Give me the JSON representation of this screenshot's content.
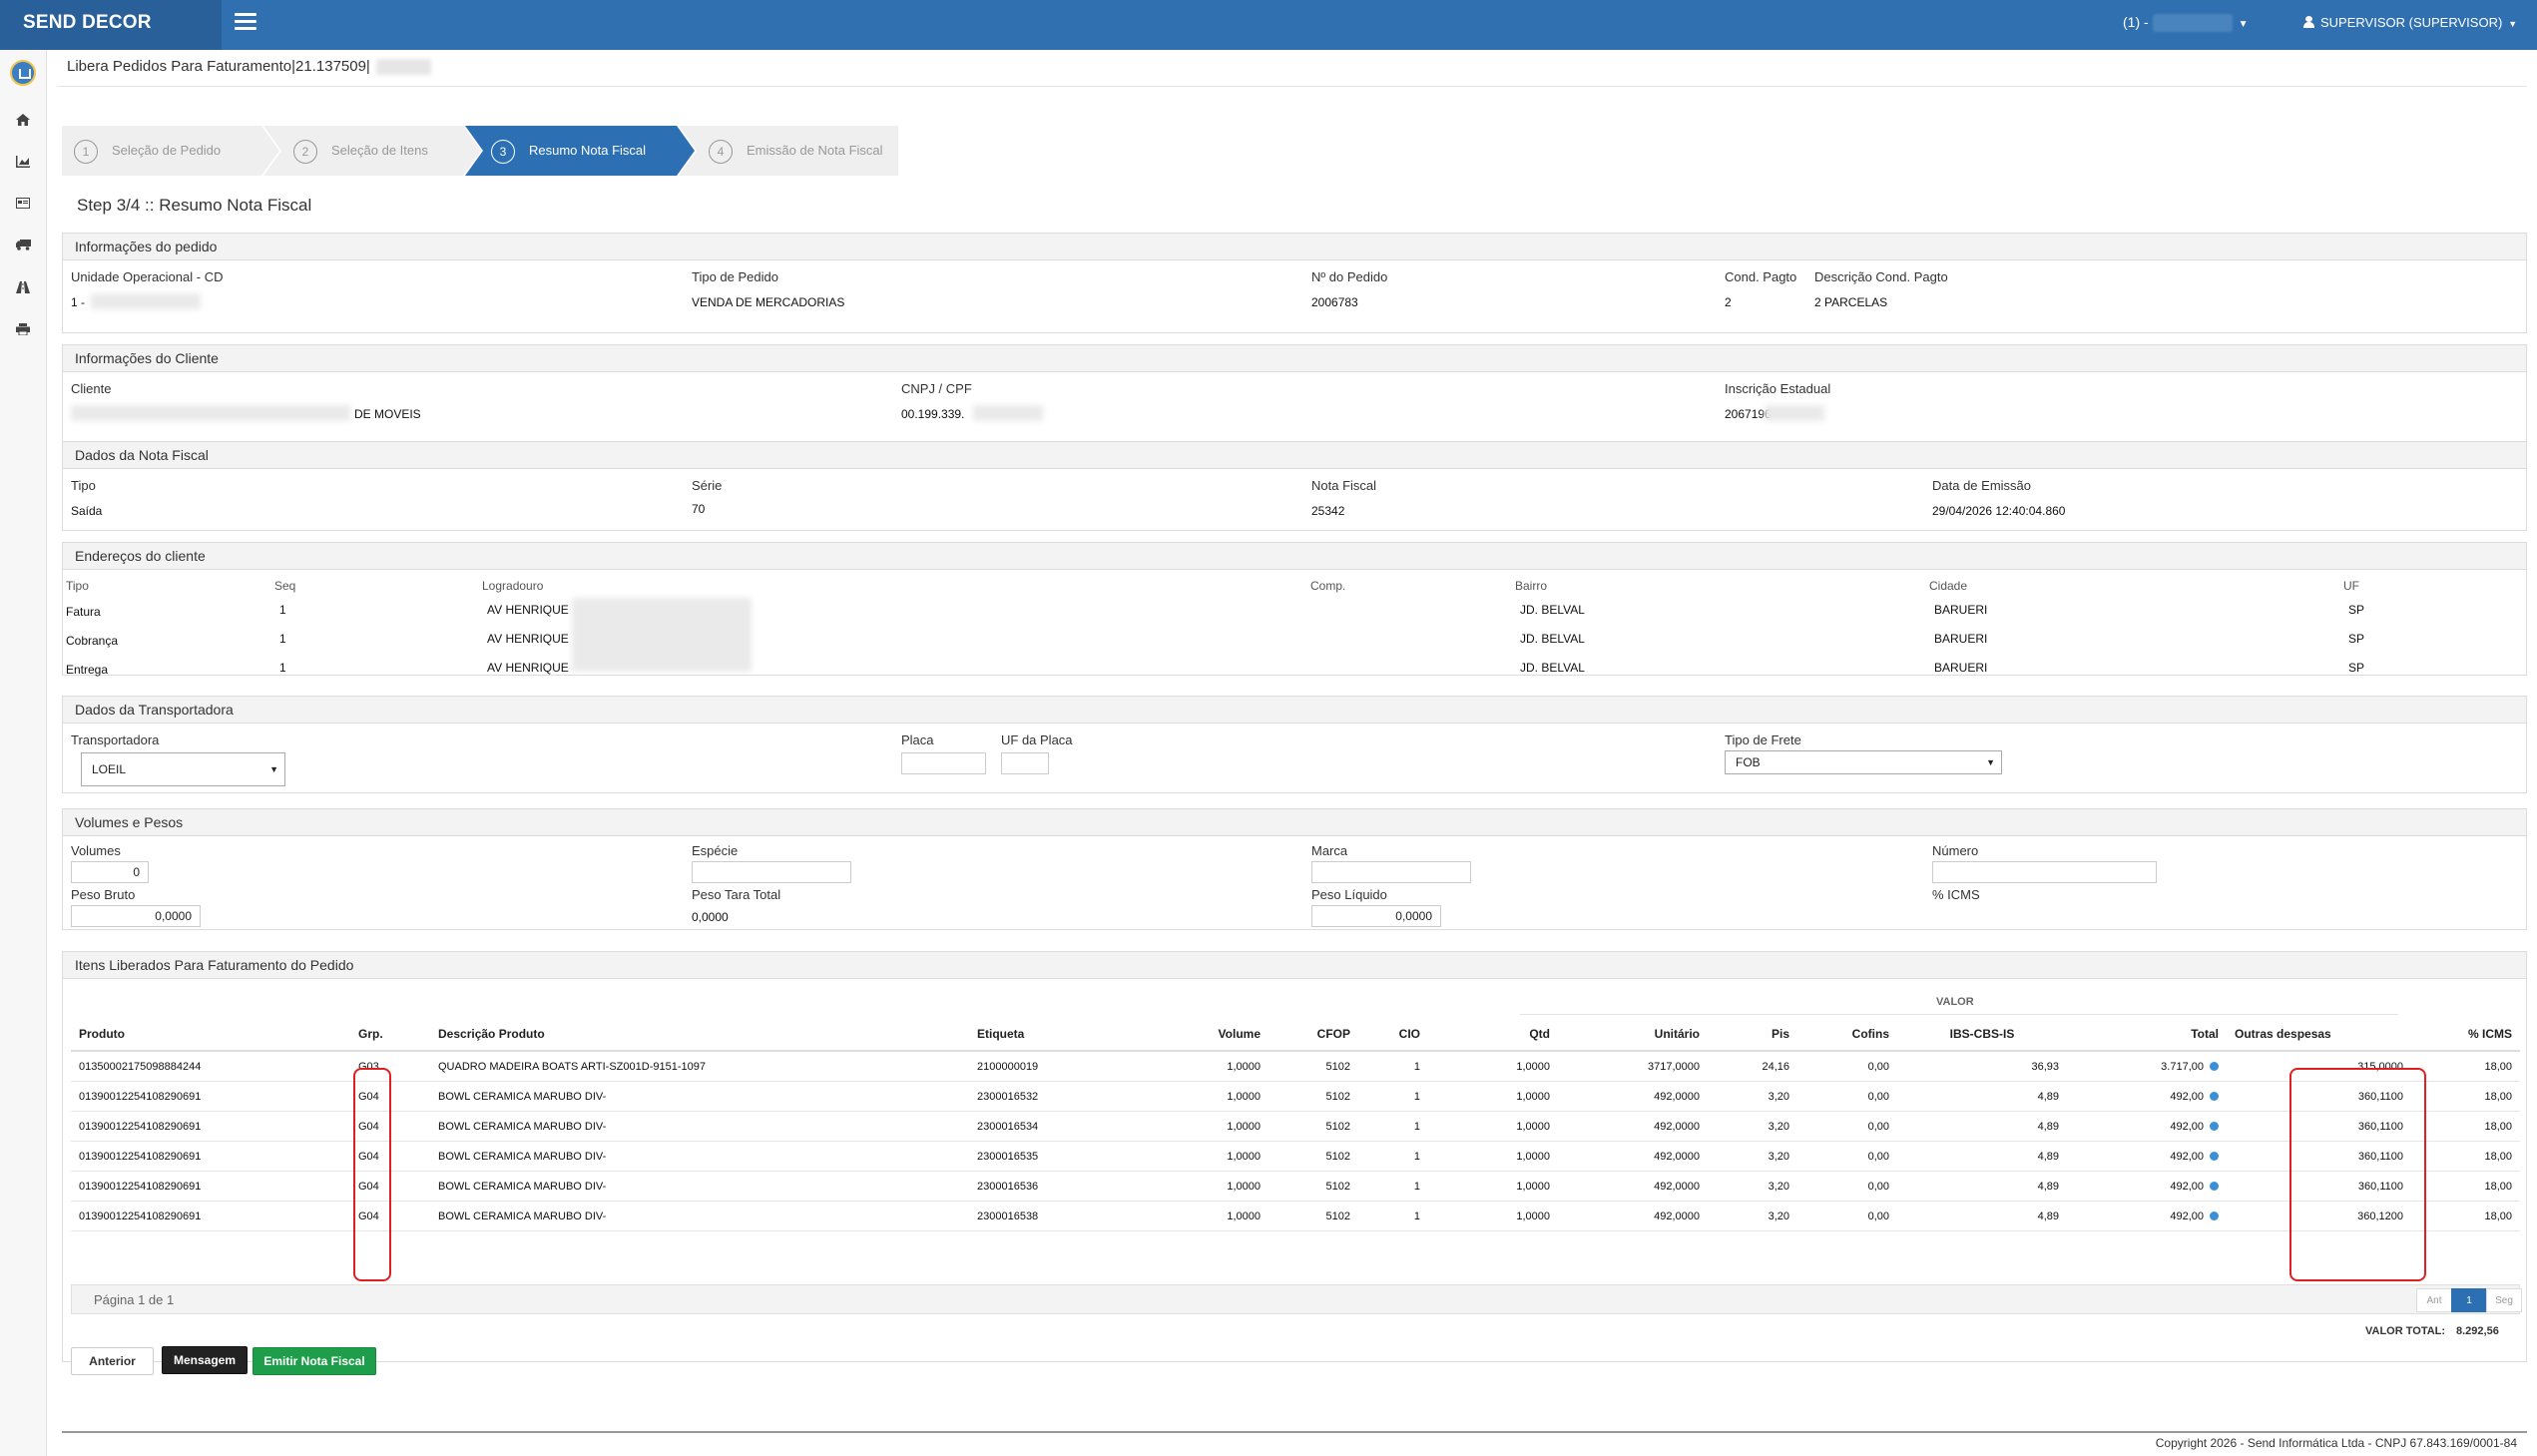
{
  "app": {
    "brand": "SEND DECOR"
  },
  "header": {
    "unit_select": "(1) -",
    "user": "SUPERVISOR (SUPERVISOR)"
  },
  "page": {
    "title": "Libera Pedidos Para Faturamento|21.137509|",
    "step_title": "Step 3/4 :: Resumo Nota Fiscal"
  },
  "wizard": [
    {
      "num": "1",
      "label": "Seleção de Pedido"
    },
    {
      "num": "2",
      "label": "Seleção de Itens"
    },
    {
      "num": "3",
      "label": "Resumo Nota Fiscal"
    },
    {
      "num": "4",
      "label": "Emissão de Nota Fiscal"
    }
  ],
  "pedido": {
    "title": "Informações do pedido",
    "unidade_label": "Unidade Operacional - CD",
    "unidade_value": "1 -",
    "tipo_label": "Tipo de Pedido",
    "tipo_value": "VENDA DE MERCADORIAS",
    "numero_label": "Nº do Pedido",
    "numero_value": "2006783",
    "cond_label": "Cond. Pagto",
    "cond_value": "2",
    "desc_cond_label": "Descrição Cond. Pagto",
    "desc_cond_value": "2 PARCELAS"
  },
  "cliente": {
    "title": "Informações do Cliente",
    "cliente_label": "Cliente",
    "cliente_value": "DE MOVEIS",
    "cnpj_label": "CNPJ / CPF",
    "cnpj_value": "00.199.339.",
    "ie_label": "Inscrição Estadual",
    "ie_value": "2067196"
  },
  "nota": {
    "title": "Dados da Nota Fiscal",
    "tipo_label": "Tipo",
    "tipo_value": "Saída",
    "serie_label": "Série",
    "serie_value": "70",
    "nota_label": "Nota Fiscal",
    "nota_value": "25342",
    "data_label": "Data de Emissão",
    "data_value": "29/04/2026 12:40:04.860"
  },
  "enderecos": {
    "title": "Endereços do cliente",
    "columns": [
      "Tipo",
      "Seq",
      "Logradouro",
      "Comp.",
      "Bairro",
      "Cidade",
      "UF"
    ],
    "rows": [
      {
        "tipo": "Fatura",
        "seq": "1",
        "logradouro": "AV HENRIQUE",
        "comp": "",
        "bairro": "JD. BELVAL",
        "cidade": "BARUERI",
        "uf": "SP"
      },
      {
        "tipo": "Cobrança",
        "seq": "1",
        "logradouro": "AV HENRIQUE",
        "comp": "",
        "bairro": "JD. BELVAL",
        "cidade": "BARUERI",
        "uf": "SP"
      },
      {
        "tipo": "Entrega",
        "seq": "1",
        "logradouro": "AV HENRIQUE",
        "comp": "",
        "bairro": "JD. BELVAL",
        "cidade": "BARUERI",
        "uf": "SP"
      }
    ]
  },
  "transportadora": {
    "title": "Dados da Transportadora",
    "transp_label": "Transportadora",
    "transp_value": "LOEIL",
    "placa_label": "Placa",
    "uf_placa_label": "UF da Placa",
    "frete_label": "Tipo de Frete",
    "frete_value": "FOB"
  },
  "volumes": {
    "title": "Volumes e Pesos",
    "volumes_label": "Volumes",
    "volumes_value": "0",
    "especie_label": "Espécie",
    "marca_label": "Marca",
    "numero_label": "Número",
    "peso_bruto_label": "Peso Bruto",
    "peso_bruto_value": "0,0000",
    "peso_tara_label": "Peso Tara Total",
    "peso_tara_value": "0,0000",
    "peso_liquido_label": "Peso Líquido",
    "peso_liquido_value": "0,0000",
    "icms_label": "% ICMS"
  },
  "itens": {
    "title": "Itens Liberados Para Faturamento do Pedido",
    "valor_group": "VALOR",
    "columns": [
      "Produto",
      "Grp.",
      "Descrição Produto",
      "Etiqueta",
      "Volume",
      "CFOP",
      "CIO",
      "Qtd",
      "Unitário",
      "Pis",
      "Cofins",
      "IBS-CBS-IS",
      "Total",
      "Outras despesas",
      "% ICMS"
    ],
    "rows": [
      {
        "produto": "01350002175098884244",
        "grp": "G03",
        "descricao": "QUADRO MADEIRA BOATS ARTI-SZ001D-9151-1097",
        "etiqueta": "2100000019",
        "volume": "1,0000",
        "cfop": "5102",
        "cio": "1",
        "qtd": "1,0000",
        "unitario": "3717,0000",
        "pis": "24,16",
        "cofins": "0,00",
        "ibs": "36,93",
        "total": "3.717,00",
        "outras": "315,0000",
        "icms": "18,00"
      },
      {
        "produto": "01390012254108290691",
        "grp": "G04",
        "descricao": "BOWL CERAMICA MARUBO DIV-",
        "etiqueta": "2300016532",
        "volume": "1,0000",
        "cfop": "5102",
        "cio": "1",
        "qtd": "1,0000",
        "unitario": "492,0000",
        "pis": "3,20",
        "cofins": "0,00",
        "ibs": "4,89",
        "total": "492,00",
        "outras": "360,1100",
        "icms": "18,00"
      },
      {
        "produto": "01390012254108290691",
        "grp": "G04",
        "descricao": "BOWL CERAMICA MARUBO DIV-",
        "etiqueta": "2300016534",
        "volume": "1,0000",
        "cfop": "5102",
        "cio": "1",
        "qtd": "1,0000",
        "unitario": "492,0000",
        "pis": "3,20",
        "cofins": "0,00",
        "ibs": "4,89",
        "total": "492,00",
        "outras": "360,1100",
        "icms": "18,00"
      },
      {
        "produto": "01390012254108290691",
        "grp": "G04",
        "descricao": "BOWL CERAMICA MARUBO DIV-",
        "etiqueta": "2300016535",
        "volume": "1,0000",
        "cfop": "5102",
        "cio": "1",
        "qtd": "1,0000",
        "unitario": "492,0000",
        "pis": "3,20",
        "cofins": "0,00",
        "ibs": "4,89",
        "total": "492,00",
        "outras": "360,1100",
        "icms": "18,00"
      },
      {
        "produto": "01390012254108290691",
        "grp": "G04",
        "descricao": "BOWL CERAMICA MARUBO DIV-",
        "etiqueta": "2300016536",
        "volume": "1,0000",
        "cfop": "5102",
        "cio": "1",
        "qtd": "1,0000",
        "unitario": "492,0000",
        "pis": "3,20",
        "cofins": "0,00",
        "ibs": "4,89",
        "total": "492,00",
        "outras": "360,1100",
        "icms": "18,00"
      },
      {
        "produto": "01390012254108290691",
        "grp": "G04",
        "descricao": "BOWL CERAMICA MARUBO DIV-",
        "etiqueta": "2300016538",
        "volume": "1,0000",
        "cfop": "5102",
        "cio": "1",
        "qtd": "1,0000",
        "unitario": "492,0000",
        "pis": "3,20",
        "cofins": "0,00",
        "ibs": "4,89",
        "total": "492,00",
        "outras": "360,1200",
        "icms": "18,00"
      }
    ],
    "pagination_text": "Página 1 de 1",
    "pager": {
      "prev": "Ant",
      "current": "1",
      "next": "Seg"
    },
    "valor_total_label": "VALOR TOTAL:",
    "valor_total_value": "8.292,56"
  },
  "actions": {
    "anterior": "Anterior",
    "mensagem": "Mensagem",
    "emitir": "Emitir Nota Fiscal"
  },
  "footer": {
    "text": "Copyright 2026 - Send Informática Ltda - CNPJ 67.843.169/0001-84"
  },
  "colors": {
    "header": "#3170b0",
    "active_step": "#2c6fb2",
    "emitir_button": "#1e9e4a",
    "mensagem_button": "#222222",
    "highlight": "#e02020"
  },
  "icons": [
    "menu-icon",
    "user-icon",
    "home-icon",
    "chart-icon",
    "card-icon",
    "truck-icon",
    "road-icon",
    "print-icon"
  ]
}
